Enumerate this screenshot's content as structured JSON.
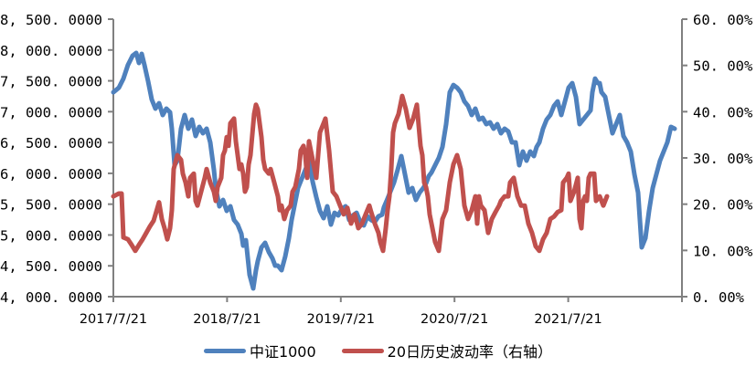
{
  "chart_data": {
    "type": "line",
    "title": "",
    "xlabel": "",
    "ylabel": "",
    "x_ticks": [
      "2017/7/21",
      "2018/7/21",
      "2019/7/21",
      "2020/7/21",
      "2021/7/21"
    ],
    "x_range": [
      "2017/7/21",
      "2022/7/21"
    ],
    "left_axis": {
      "ylim": [
        4000,
        8500
      ],
      "ticks": [
        "4,000.0000",
        "4,500.0000",
        "5,000.0000",
        "5,500.0000",
        "6,000.0000",
        "6,500.0000",
        "7,000.0000",
        "7,500.0000",
        "8,000.0000",
        "8,500.0000"
      ]
    },
    "right_axis": {
      "ylim": [
        0,
        60
      ],
      "ticks": [
        "0.00%",
        "10.00%",
        "20.00%",
        "30.00%",
        "40.00%",
        "50.00%",
        "60.00%"
      ]
    },
    "grid": false,
    "legend_position": "bottom",
    "series": [
      {
        "name": "中证1000",
        "axis": "left",
        "color": "#4F81BD",
        "x_frac": [
          0,
          0.0097,
          0.0177,
          0.0257,
          0.0338,
          0.0402,
          0.045,
          0.0498,
          0.0547,
          0.0611,
          0.0675,
          0.074,
          0.0804,
          0.0868,
          0.0932,
          0.0997,
          0.1029,
          0.1077,
          0.1125,
          0.119,
          0.1254,
          0.1318,
          0.1383,
          0.1447,
          0.1511,
          0.1576,
          0.164,
          0.1704,
          0.1768,
          0.1801,
          0.1865,
          0.1929,
          0.1994,
          0.2058,
          0.2122,
          0.2186,
          0.2251,
          0.2283,
          0.2331,
          0.2395,
          0.246,
          0.2508,
          0.254,
          0.2605,
          0.2669,
          0.2733,
          0.2797,
          0.2846,
          0.2894,
          0.2958,
          0.3023,
          0.3087,
          0.3135,
          0.3183,
          0.3248,
          0.3312,
          0.3376,
          0.3441,
          0.3505,
          0.3569,
          0.3633,
          0.3698,
          0.3762,
          0.3826,
          0.3891,
          0.3955,
          0.4019,
          0.4084,
          0.4148,
          0.4212,
          0.4277,
          0.4341,
          0.4405,
          0.447,
          0.4534,
          0.4598,
          0.4662,
          0.4727,
          0.4759,
          0.4807,
          0.4871,
          0.4936,
          0.5,
          0.5064,
          0.5129,
          0.5193,
          0.5257,
          0.5322,
          0.5386,
          0.545,
          0.5498,
          0.5547,
          0.5595,
          0.5659,
          0.5723,
          0.5788,
          0.5852,
          0.5916,
          0.5981,
          0.6045,
          0.6109,
          0.6174,
          0.6238,
          0.6302,
          0.6367,
          0.6431,
          0.6495,
          0.656,
          0.6624,
          0.6688,
          0.6752,
          0.6817,
          0.6881,
          0.6945,
          0.701,
          0.7074,
          0.7138,
          0.7203,
          0.7267,
          0.7331,
          0.7395,
          0.7444,
          0.7492,
          0.7556,
          0.762,
          0.7685,
          0.7749,
          0.7813,
          0.7878,
          0.7942,
          0.8006,
          0.8071,
          0.8135,
          0.8199,
          0.8264,
          0.8328,
          0.8392,
          0.8424,
          0.8473,
          0.8521,
          0.8553,
          0.8585,
          0.865,
          0.8714,
          0.8778,
          0.8842,
          0.8907,
          0.8971,
          0.9035,
          0.91,
          0.9164,
          0.9228,
          0.9293,
          0.9357,
          0.9389,
          0.9421,
          0.9486,
          0.955,
          0.9614,
          0.9678,
          0.9743,
          0.9807,
          0.9871,
          0.9936,
          1.0
        ],
        "values": [
          7315,
          7389,
          7537,
          7759,
          7907,
          7952,
          7789,
          7937,
          7759,
          7493,
          7197,
          7049,
          7137,
          6945,
          7049,
          6990,
          6723,
          6131,
          6205,
          6723,
          6945,
          6723,
          6871,
          6605,
          6753,
          6649,
          6723,
          6501,
          6057,
          5761,
          5465,
          5569,
          5391,
          5465,
          5243,
          5169,
          5021,
          4828,
          4917,
          4355,
          4133,
          4429,
          4577,
          4799,
          4873,
          4725,
          4621,
          4503,
          4503,
          4429,
          4651,
          4947,
          5243,
          5465,
          5761,
          5909,
          6057,
          6205,
          5865,
          5613,
          5391,
          5273,
          5465,
          5169,
          5361,
          5317,
          5421,
          5465,
          5243,
          5317,
          5361,
          5213,
          5154,
          5302,
          5243,
          5213,
          5302,
          5331,
          5450,
          5554,
          5702,
          5850,
          6057,
          6279,
          5983,
          5687,
          5761,
          5569,
          5687,
          5761,
          5835,
          5954,
          6013,
          6131,
          6250,
          6427,
          6796,
          7315,
          7433,
          7389,
          7315,
          7167,
          7093,
          6945,
          7049,
          6871,
          6901,
          6797,
          6827,
          6723,
          6797,
          6649,
          6723,
          6679,
          6501,
          6501,
          6131,
          6353,
          6205,
          6353,
          6279,
          6427,
          6501,
          6723,
          6871,
          6945,
          7093,
          7167,
          6945,
          7167,
          7389,
          7463,
          7241,
          6797,
          6871,
          6945,
          7019,
          7315,
          7537,
          7463,
          7463,
          7315,
          7241,
          6945,
          6649,
          6797,
          6945,
          6605,
          6501,
          6353,
          5983,
          5687,
          4799,
          4947,
          5169,
          5391,
          5761,
          5983,
          6205,
          6353,
          6501,
          6753,
          6723
        ]
      },
      {
        "name": "20日历史波动率（右轴）",
        "axis": "right",
        "color": "#C0504D",
        "x_frac": [
          0,
          0.0097,
          0.0145,
          0.0177,
          0.0257,
          0.0322,
          0.0386,
          0.045,
          0.0514,
          0.0579,
          0.0643,
          0.0707,
          0.0756,
          0.0804,
          0.0852,
          0.09,
          0.0949,
          0.0997,
          0.1029,
          0.1061,
          0.1125,
          0.119,
          0.1222,
          0.127,
          0.1318,
          0.135,
          0.1415,
          0.1447,
          0.1479,
          0.1543,
          0.1608,
          0.164,
          0.1704,
          0.1768,
          0.1801,
          0.1833,
          0.1897,
          0.1929,
          0.1961,
          0.1994,
          0.2026,
          0.2058,
          0.2122,
          0.2154,
          0.2219,
          0.2251,
          0.2283,
          0.2315,
          0.2347,
          0.2379,
          0.2412,
          0.2476,
          0.2508,
          0.254,
          0.2605,
          0.2637,
          0.2669,
          0.2733,
          0.2765,
          0.283,
          0.2894,
          0.2926,
          0.2958,
          0.3006,
          0.3055,
          0.3119,
          0.3151,
          0.3199,
          0.3264,
          0.3296,
          0.3344,
          0.3376,
          0.3408,
          0.3441,
          0.3505,
          0.3569,
          0.3633,
          0.3698,
          0.373,
          0.3794,
          0.3859,
          0.3923,
          0.3987,
          0.4051,
          0.4116,
          0.418,
          0.4244,
          0.4309,
          0.4373,
          0.4437,
          0.4502,
          0.4534,
          0.4598,
          0.4662,
          0.4695,
          0.4743,
          0.4791,
          0.4823,
          0.4855,
          0.4887,
          0.492,
          0.4952,
          0.5016,
          0.508,
          0.5145,
          0.5209,
          0.5273,
          0.5338,
          0.5402,
          0.5434,
          0.5466,
          0.5498,
          0.5531,
          0.5563,
          0.5595,
          0.5659,
          0.5723,
          0.5788,
          0.5852,
          0.5916,
          0.5981,
          0.6045,
          0.6109,
          0.6174,
          0.6238,
          0.6302,
          0.6367,
          0.6399,
          0.6431,
          0.6463,
          0.6527,
          0.6592,
          0.6656,
          0.672,
          0.6785,
          0.6817,
          0.6881,
          0.6945,
          0.6977,
          0.7042,
          0.7106,
          0.717,
          0.7235,
          0.7299,
          0.7363,
          0.7428,
          0.7492,
          0.7556,
          0.7621,
          0.7685,
          0.7749,
          0.7814,
          0.7878,
          0.791,
          0.7974,
          0.8006,
          0.8039,
          0.8103,
          0.8167,
          0.8199,
          0.8231,
          0.8264,
          0.8296,
          0.8328,
          0.836,
          0.8392,
          0.8457,
          0.8489,
          0.8553,
          0.8617,
          0.8682,
          1.0
        ],
        "values": [
          21.7,
          22.3,
          22.3,
          12.8,
          12.4,
          11.2,
          9.9,
          11.2,
          12.4,
          13.8,
          15.2,
          16.4,
          18.4,
          20.4,
          16.8,
          14.8,
          12.4,
          14.8,
          18.7,
          27.6,
          30.6,
          29.6,
          26.6,
          24.7,
          21.7,
          25.7,
          26.6,
          20.7,
          19.7,
          22.7,
          25.7,
          27.6,
          24.7,
          22.7,
          20.7,
          23.7,
          25.7,
          30.6,
          31.6,
          34.5,
          32.6,
          37.5,
          38.5,
          33.6,
          27.6,
          28.6,
          26.6,
          22.7,
          23.7,
          28.6,
          30.6,
          39.5,
          41.5,
          40.5,
          34.5,
          29.6,
          27.6,
          26.6,
          27.6,
          24.7,
          21.7,
          18.7,
          19.7,
          16.8,
          18.7,
          19.7,
          22.7,
          23.7,
          27.6,
          31.6,
          32.6,
          30.6,
          25.7,
          33.6,
          29.6,
          25.7,
          35.5,
          37.5,
          38.5,
          31.6,
          22.7,
          21.7,
          19.7,
          17.8,
          19.2,
          15.8,
          17.8,
          14.8,
          15.8,
          17.8,
          19.7,
          18.3,
          15.8,
          13.8,
          11.8,
          9.9,
          14.8,
          18.7,
          21.7,
          27.6,
          35.5,
          37.5,
          39.5,
          43.4,
          40.5,
          36.5,
          38.5,
          41.5,
          32.6,
          30.6,
          24.7,
          23.7,
          21.7,
          17.8,
          15.8,
          11.8,
          9.9,
          16.8,
          18.7,
          24.7,
          28.6,
          30.6,
          27.6,
          19.7,
          16.8,
          18.7,
          21.7,
          15.8,
          21.7,
          19.7,
          18.7,
          13.8,
          16.8,
          18.3,
          19.7,
          20.7,
          21.7,
          21.7,
          24.7,
          25.7,
          21.7,
          19.7,
          19.7,
          15.8,
          13.8,
          10.9,
          9.9,
          12.4,
          13.8,
          16.8,
          17.3,
          18.3,
          18.7,
          24.7,
          25.7,
          26.6,
          20.7,
          22.7,
          25.7,
          16.8,
          14.8,
          20.7,
          21.7,
          20.7,
          25.7,
          26.6,
          26.6,
          20.7,
          21.7,
          19.7,
          21.7
        ]
      }
    ]
  },
  "legend": {
    "items": [
      {
        "label": "中证1000",
        "color": "#4F81BD"
      },
      {
        "label": "20日历史波动率（右轴）",
        "color": "#C0504D"
      }
    ]
  }
}
